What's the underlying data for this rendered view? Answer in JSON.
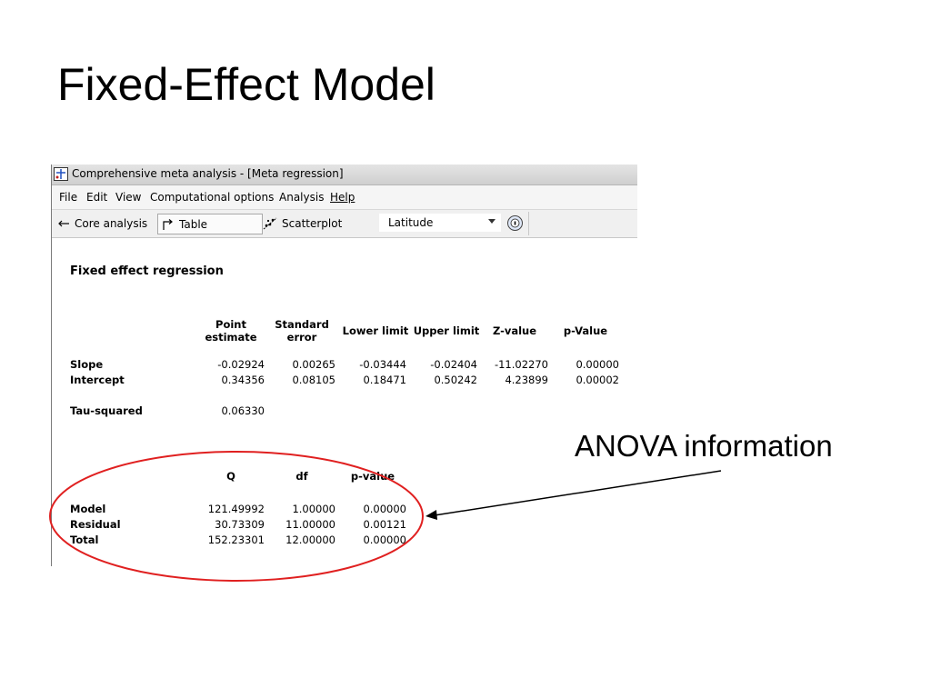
{
  "slide": {
    "title": "Fixed-Effect Model",
    "annotation": "ANOVA information",
    "annotation_color": "#000000",
    "highlight_color": "#e02020"
  },
  "window": {
    "title": "Comprehensive meta analysis - [Meta regression]",
    "menu": [
      "File",
      "Edit",
      "View",
      "Computational options",
      "Analysis",
      "Help"
    ],
    "toolbar": {
      "core_analysis": "Core analysis",
      "table": "Table",
      "scatterplot": "Scatterplot",
      "covariate_value": "Latitude",
      "icons": [
        "arrow-left-icon",
        "table-arrow-icon",
        "scatterplot-icon",
        "help-icon"
      ]
    }
  },
  "report": {
    "title": "Fixed effect regression",
    "columns": [
      "Point\nestimate",
      "Standard\nerror",
      "Lower limit",
      "Upper limit",
      "Z-value",
      "p-Value"
    ],
    "rows": [
      {
        "label": "Slope",
        "values": [
          "-0.02924",
          "0.00265",
          "-0.03444",
          "-0.02404",
          "-11.02270",
          "0.00000"
        ]
      },
      {
        "label": "Intercept",
        "values": [
          "0.34356",
          "0.08105",
          "0.18471",
          "0.50242",
          "4.23899",
          "0.00002"
        ]
      }
    ],
    "tau_label": "Tau-squared",
    "tau_value": "0.06330",
    "anova": {
      "columns": [
        "Q",
        "df",
        "p-value"
      ],
      "rows": [
        {
          "label": "Model",
          "values": [
            "121.49992",
            "1.00000",
            "0.00000"
          ]
        },
        {
          "label": "Residual",
          "values": [
            "30.73309",
            "11.00000",
            "0.00121"
          ]
        },
        {
          "label": "Total",
          "values": [
            "152.23301",
            "12.00000",
            "0.00000"
          ]
        }
      ]
    }
  }
}
